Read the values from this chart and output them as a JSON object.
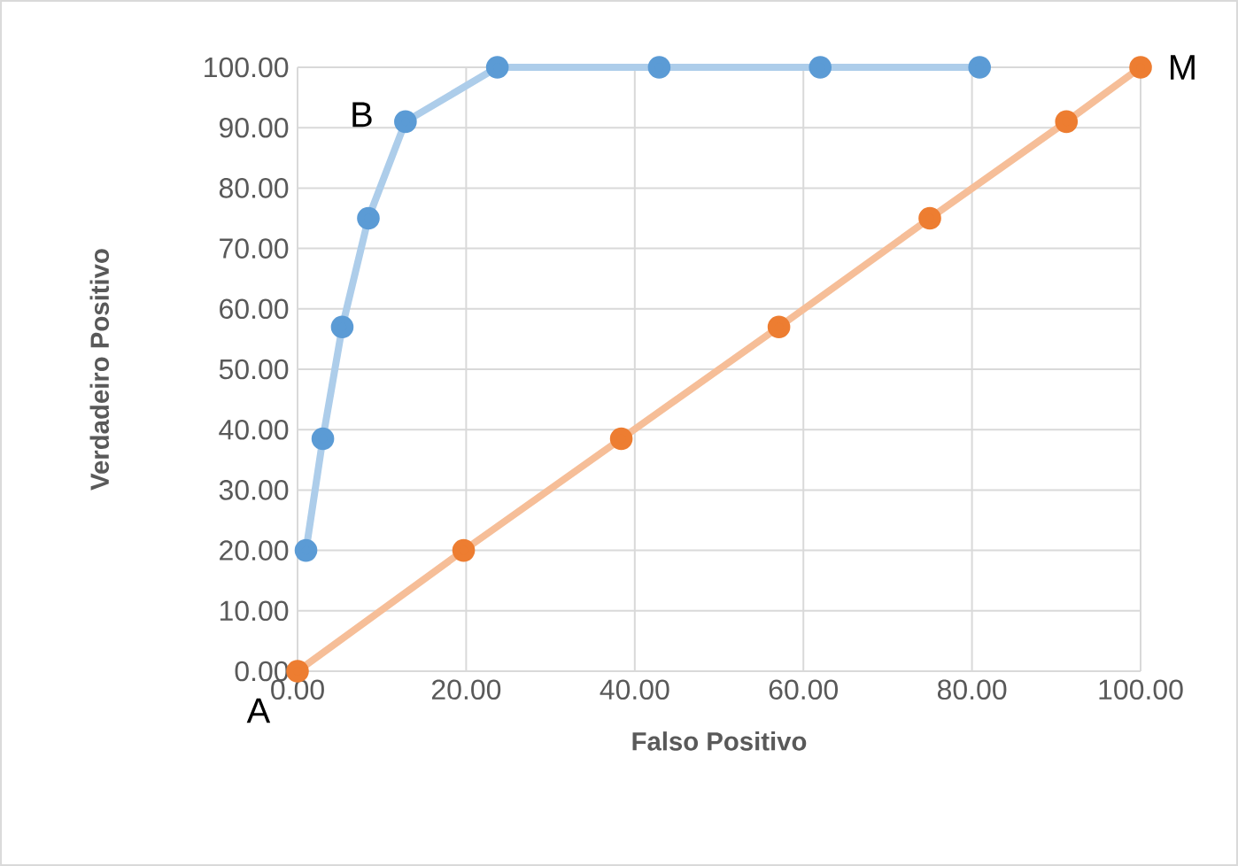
{
  "chart_data": {
    "type": "line",
    "xlabel": "Falso Positivo",
    "ylabel": "Verdadeiro Positivo",
    "series": [
      {
        "color": "#5b9bd5",
        "x": [
          1,
          3,
          5.3,
          8.4,
          12.8,
          23.7,
          42.9,
          62,
          80.9
        ],
        "values": [
          20,
          38.5,
          57,
          75,
          91,
          100,
          100,
          100,
          100
        ]
      },
      {
        "color": "#ed7d31",
        "x": [
          0,
          19.7,
          38.4,
          57.1,
          75,
          91.2,
          100
        ],
        "values": [
          0,
          20,
          38.5,
          57,
          75,
          91,
          100
        ]
      }
    ],
    "xlim": [
      0,
      100
    ],
    "ylim": [
      0,
      100
    ],
    "xticks": [
      {
        "value": 0,
        "label": "0.00"
      },
      {
        "value": 20,
        "label": "20.00"
      },
      {
        "value": 40,
        "label": "40.00"
      },
      {
        "value": 60,
        "label": "60.00"
      },
      {
        "value": 80,
        "label": "80.00"
      },
      {
        "value": 100,
        "label": "100.00"
      }
    ],
    "yticks": [
      {
        "value": 0,
        "label": "0.00"
      },
      {
        "value": 10,
        "label": "10.00"
      },
      {
        "value": 20,
        "label": "20.00"
      },
      {
        "value": 30,
        "label": "30.00"
      },
      {
        "value": 40,
        "label": "40.00"
      },
      {
        "value": 50,
        "label": "50.00"
      },
      {
        "value": 60,
        "label": "60.00"
      },
      {
        "value": 70,
        "label": "70.00"
      },
      {
        "value": 80,
        "label": "80.00"
      },
      {
        "value": 90,
        "label": "90.00"
      },
      {
        "value": 100,
        "label": "100.00"
      }
    ],
    "grid": true,
    "marker": "circle",
    "line_style": "solid",
    "annotations": [
      {
        "text": "A",
        "x": 0,
        "y": 0
      },
      {
        "text": "B",
        "x": 12.8,
        "y": 91
      },
      {
        "text": "M",
        "x": 100,
        "y": 100
      }
    ]
  }
}
